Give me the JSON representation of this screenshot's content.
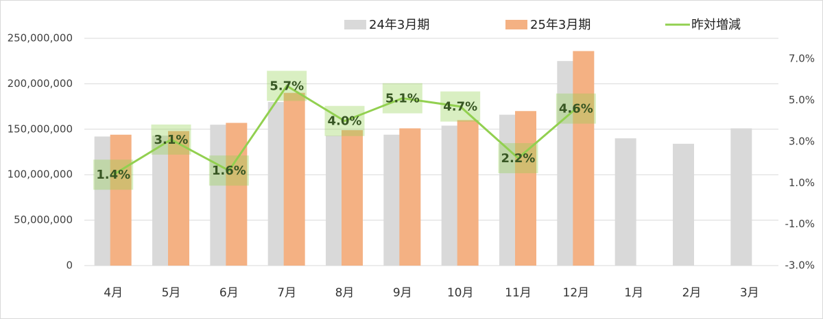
{
  "chart_data": {
    "type": "bar_line",
    "categories": [
      "4月",
      "5月",
      "6月",
      "7月",
      "8月",
      "9月",
      "10月",
      "11月",
      "12月",
      "1月",
      "2月",
      "3月"
    ],
    "series": [
      {
        "name": "24年3月期",
        "type": "bar",
        "color": "#d9d9d9",
        "values": [
          142000000,
          143000000,
          155000000,
          180000000,
          143000000,
          144000000,
          154000000,
          166000000,
          225000000,
          140000000,
          134000000,
          151000000
        ]
      },
      {
        "name": "25年3月期",
        "type": "bar",
        "color": "#f4b183",
        "values": [
          144000000,
          148000000,
          157000000,
          190000000,
          149000000,
          151000000,
          160000000,
          170000000,
          236000000,
          null,
          null,
          null
        ]
      },
      {
        "name": "昨対増減",
        "type": "line",
        "axis": "y2",
        "color": "#92d050",
        "values": [
          1.4,
          3.1,
          1.6,
          5.7,
          4.0,
          5.1,
          4.7,
          2.2,
          4.6,
          null,
          null,
          null
        ],
        "value_labels": [
          "1.4%",
          "3.1%",
          "1.6%",
          "5.7%",
          "4.0%",
          "5.1%",
          "4.7%",
          "2.2%",
          "4.6%",
          null,
          null,
          null
        ]
      }
    ],
    "ylim": [
      0,
      250000000
    ],
    "yticks": [
      0,
      {
        "value": 50000000,
        "label": "50,000,000"
      },
      {
        "value": 100000000,
        "label": "100,000,000"
      },
      {
        "value": 150000000,
        "label": "150,000,000"
      },
      {
        "value": 200000000,
        "label": "200,000,000"
      },
      {
        "value": 250000000,
        "label": "250,000,000"
      }
    ],
    "y2lim": [
      -3,
      8
    ],
    "y2ticks": [
      {
        "value": -3,
        "label": "-3.0%"
      },
      {
        "value": -1,
        "label": "-1.0%"
      },
      {
        "value": 1,
        "label": "1.0%"
      },
      {
        "value": 3,
        "label": "3.0%"
      },
      {
        "value": 5,
        "label": "5.0%"
      },
      {
        "value": 7,
        "label": "7.0%"
      }
    ],
    "grid": true
  }
}
